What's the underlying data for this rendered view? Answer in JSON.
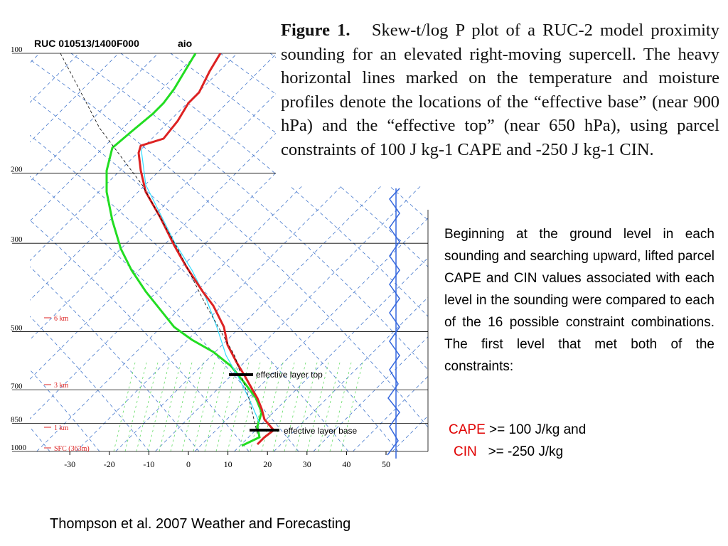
{
  "figure": {
    "header": "RUC 010513/1400F000",
    "header_tag": "aio",
    "pressure_ticks": [
      100,
      200,
      300,
      500,
      700,
      850,
      1000
    ],
    "temperature_ticks": [
      -30,
      -20,
      -10,
      0,
      10,
      20,
      30,
      40,
      50
    ],
    "height_labels": [
      "6 km",
      "3 km",
      "1 km",
      "SFC (363m)"
    ],
    "annotations": {
      "top": "effective layer top",
      "base": "effective layer base"
    }
  },
  "caption": {
    "label": "Figure 1.",
    "text": "Skew-t/log P plot of a RUC-2 model proximity sounding for an elevated right-moving supercell.  The heavy horizontal lines marked on the temperature and moisture profiles denote the locations of the “effective base” (near 900 hPa) and the “effective top” (near 650 hPa), using parcel constraints of 100 J kg-1 CAPE and -250 J kg-1 CIN."
  },
  "body": "Beginning at the ground level in each sounding and searching upward, lifted parcel CAPE and CIN values associated with each level in the sounding were compared to each of the 16 possible constraint combinations. The first level that met both of the constraints:",
  "constraints": [
    {
      "name": "CAPE",
      "rule": ">= 100  J/kg and"
    },
    {
      "name": "CIN",
      "rule": ">= -250 J/kg"
    }
  ],
  "citation": "Thompson et al. 2007  Weather and Forecasting"
}
